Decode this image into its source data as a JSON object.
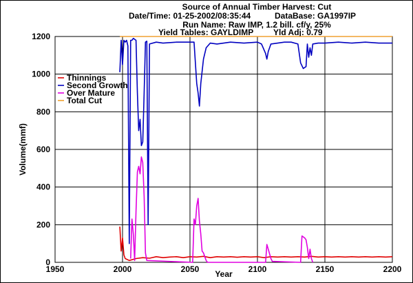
{
  "header": {
    "title": "Source of Annual Timber Harvest: Cut",
    "datetime": "Date/Time: 01-25-2002/08:35:44",
    "database": "DataBase: GA1997IP",
    "run_name": "Run Name: Raw IMP, 1.2 bill. cf/y, 25%",
    "yield_tables": "Yield Tables: GAYLDIMP",
    "yld_adj": "Yld Adj: 0.79"
  },
  "chart_data": {
    "type": "line",
    "title": "Source of Annual Timber Harvest: Cut",
    "xlabel": "Year",
    "ylabel": "Volume(mmf)",
    "xlim": [
      1950,
      2200
    ],
    "ylim": [
      0,
      1200
    ],
    "xticks": [
      1950,
      2000,
      2050,
      2100,
      2150,
      2200
    ],
    "yticks": [
      0,
      200,
      400,
      600,
      800,
      1000,
      1200
    ],
    "grid": true,
    "legend_position": "top-left",
    "series": [
      {
        "name": "Thinnings",
        "color": "#e00000",
        "points": [
          [
            1998,
            190
          ],
          [
            1999,
            60
          ],
          [
            2000,
            130
          ],
          [
            2001,
            40
          ],
          [
            2002,
            20
          ],
          [
            2005,
            10
          ],
          [
            2010,
            20
          ],
          [
            2015,
            25
          ],
          [
            2020,
            22
          ],
          [
            2025,
            30
          ],
          [
            2030,
            25
          ],
          [
            2035,
            28
          ],
          [
            2040,
            30
          ],
          [
            2045,
            25
          ],
          [
            2050,
            30
          ],
          [
            2055,
            28
          ],
          [
            2060,
            32
          ],
          [
            2065,
            25
          ],
          [
            2070,
            30
          ],
          [
            2075,
            28
          ],
          [
            2080,
            30
          ],
          [
            2085,
            27
          ],
          [
            2090,
            30
          ],
          [
            2095,
            28
          ],
          [
            2100,
            30
          ],
          [
            2105,
            25
          ],
          [
            2110,
            30
          ],
          [
            2115,
            28
          ],
          [
            2120,
            30
          ],
          [
            2125,
            28
          ],
          [
            2130,
            30
          ],
          [
            2135,
            28
          ],
          [
            2140,
            32
          ],
          [
            2145,
            28
          ],
          [
            2150,
            30
          ],
          [
            2155,
            28
          ],
          [
            2160,
            30
          ],
          [
            2165,
            28
          ],
          [
            2170,
            30
          ],
          [
            2175,
            28
          ],
          [
            2180,
            30
          ],
          [
            2185,
            28
          ],
          [
            2190,
            30
          ],
          [
            2195,
            28
          ],
          [
            2200,
            30
          ]
        ]
      },
      {
        "name": "Second Growth",
        "color": "#0000c0",
        "points": [
          [
            1998,
            1010
          ],
          [
            1999,
            1180
          ],
          [
            2000,
            1050
          ],
          [
            2001,
            1180
          ],
          [
            2002,
            1170
          ],
          [
            2003,
            1180
          ],
          [
            2004,
            1150
          ],
          [
            2005,
            100
          ],
          [
            2006,
            1180
          ],
          [
            2007,
            1180
          ],
          [
            2008,
            1190
          ],
          [
            2010,
            1180
          ],
          [
            2011,
            900
          ],
          [
            2012,
            700
          ],
          [
            2013,
            760
          ],
          [
            2014,
            620
          ],
          [
            2015,
            640
          ],
          [
            2016,
            900
          ],
          [
            2017,
            1170
          ],
          [
            2018,
            1175
          ],
          [
            2019,
            200
          ],
          [
            2020,
            1160
          ],
          [
            2025,
            1170
          ],
          [
            2030,
            1165
          ],
          [
            2040,
            1170
          ],
          [
            2050,
            1170
          ],
          [
            2053,
            1170
          ],
          [
            2055,
            950
          ],
          [
            2056,
            900
          ],
          [
            2057,
            830
          ],
          [
            2058,
            950
          ],
          [
            2060,
            1080
          ],
          [
            2062,
            1140
          ],
          [
            2065,
            1165
          ],
          [
            2070,
            1160
          ],
          [
            2080,
            1170
          ],
          [
            2090,
            1165
          ],
          [
            2100,
            1170
          ],
          [
            2103,
            1160
          ],
          [
            2106,
            1110
          ],
          [
            2107,
            1080
          ],
          [
            2108,
            1120
          ],
          [
            2110,
            1160
          ],
          [
            2115,
            1165
          ],
          [
            2120,
            1170
          ],
          [
            2125,
            1170
          ],
          [
            2130,
            1160
          ],
          [
            2132,
            1060
          ],
          [
            2134,
            1030
          ],
          [
            2136,
            1040
          ],
          [
            2137,
            1160
          ],
          [
            2138,
            1090
          ],
          [
            2139,
            1140
          ],
          [
            2140,
            1100
          ],
          [
            2141,
            1160
          ],
          [
            2145,
            1165
          ],
          [
            2150,
            1165
          ],
          [
            2160,
            1170
          ],
          [
            2170,
            1165
          ],
          [
            2180,
            1170
          ],
          [
            2190,
            1165
          ],
          [
            2200,
            1165
          ]
        ]
      },
      {
        "name": "Over Mature",
        "color": "#e000e0",
        "points": [
          [
            2006,
            20
          ],
          [
            2007,
            230
          ],
          [
            2008,
            150
          ],
          [
            2009,
            10
          ],
          [
            2010,
            270
          ],
          [
            2011,
            480
          ],
          [
            2012,
            510
          ],
          [
            2013,
            470
          ],
          [
            2014,
            560
          ],
          [
            2015,
            530
          ],
          [
            2016,
            350
          ],
          [
            2017,
            50
          ],
          [
            2018,
            10
          ],
          [
            2052,
            0
          ],
          [
            2053,
            230
          ],
          [
            2054,
            200
          ],
          [
            2055,
            300
          ],
          [
            2056,
            340
          ],
          [
            2057,
            220
          ],
          [
            2058,
            150
          ],
          [
            2059,
            60
          ],
          [
            2060,
            50
          ],
          [
            2062,
            10
          ],
          [
            2063,
            0
          ],
          [
            2106,
            0
          ],
          [
            2107,
            95
          ],
          [
            2108,
            70
          ],
          [
            2110,
            20
          ],
          [
            2111,
            5
          ],
          [
            2132,
            0
          ],
          [
            2133,
            140
          ],
          [
            2135,
            130
          ],
          [
            2136,
            120
          ],
          [
            2137,
            80
          ],
          [
            2138,
            20
          ],
          [
            2139,
            70
          ],
          [
            2140,
            20
          ],
          [
            2141,
            0
          ]
        ]
      },
      {
        "name": "Total Cut",
        "color": "#f0a030",
        "points": [
          [
            1998,
            1200
          ],
          [
            2200,
            1200
          ]
        ]
      }
    ]
  }
}
